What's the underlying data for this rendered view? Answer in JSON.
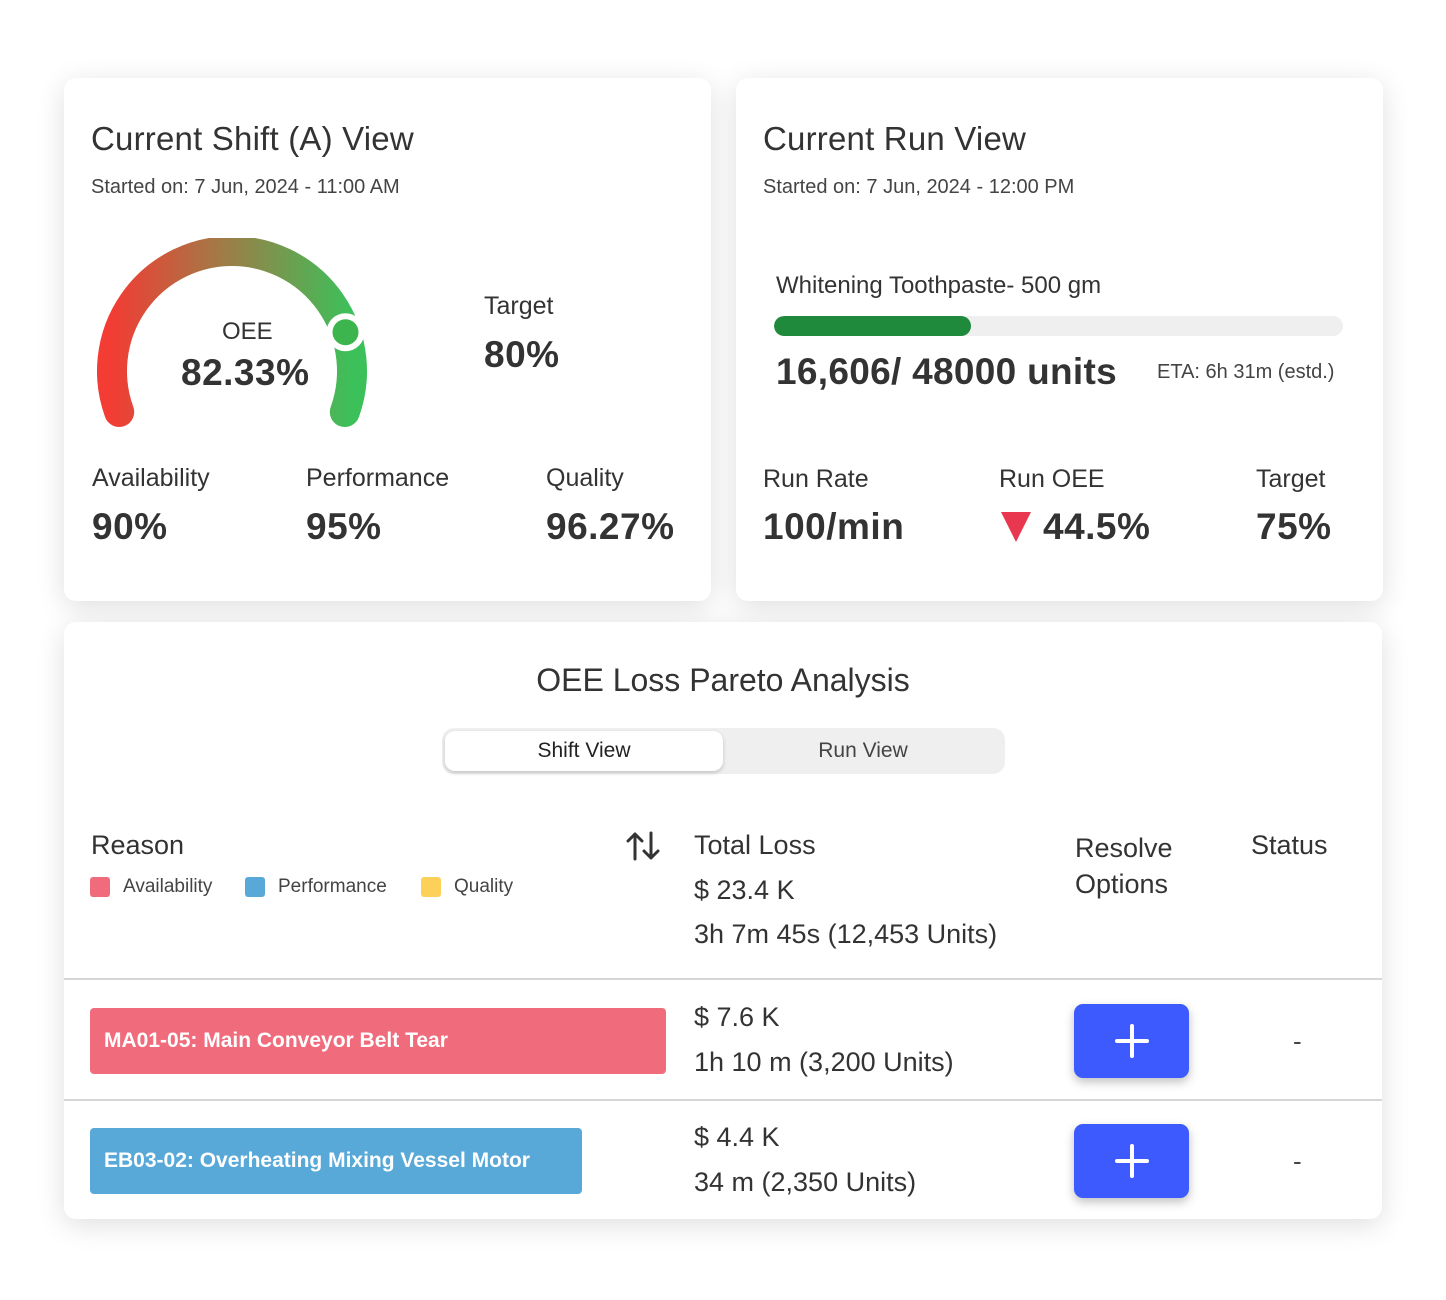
{
  "shift": {
    "title": "Current Shift (A) View",
    "started": "Started on: 7 Jun, 2024 - 11:00 AM",
    "oee_label": "OEE",
    "oee_value": "82.33%",
    "oee_fraction": 0.8233,
    "target_label": "Target",
    "target_value": "80%",
    "metrics": [
      {
        "label": "Availability",
        "value": "90%"
      },
      {
        "label": "Performance",
        "value": "95%"
      },
      {
        "label": "Quality",
        "value": "96.27%"
      }
    ]
  },
  "run": {
    "title": "Current Run View",
    "started": "Started on: 7 Jun, 2024 - 12:00 PM",
    "product": "Whitening Toothpaste- 500 gm",
    "units": "16,606/ 48000 units",
    "progress_fraction": 0.346,
    "eta": "ETA: 6h 31m (estd.)",
    "metrics": [
      {
        "label": "Run Rate",
        "value": "100/min"
      },
      {
        "label": "Run OEE",
        "value": "44.5%"
      },
      {
        "label": "Target",
        "value": "75%"
      }
    ]
  },
  "pareto": {
    "title": "OEE Loss Pareto Analysis",
    "tabs": [
      {
        "label": "Shift View"
      },
      {
        "label": "Run View"
      }
    ],
    "headers": {
      "reason": "Reason",
      "total_loss": "Total Loss",
      "resolve": "Resolve Options",
      "status": "Status"
    },
    "legend": [
      {
        "label": "Availability",
        "color": "#f06c7c"
      },
      {
        "label": "Performance",
        "color": "#58a8d8"
      },
      {
        "label": "Quality",
        "color": "#fdd05a"
      }
    ],
    "total_cost": "$ 23.4 K",
    "total_time": "3h 7m 45s (12,453 Units)",
    "rows": [
      {
        "reason": "MA01-05: Main Conveyor Belt Tear",
        "cost": "$ 7.6 K",
        "time": "1h 10 m (3,200 Units)",
        "status": "-",
        "color": "#f06c7c"
      },
      {
        "reason": "EB03-02: Overheating Mixing Vessel Motor",
        "cost": "$ 4.4 K",
        "time": "34 m (2,350 Units)",
        "status": "-",
        "color": "#58a8d8"
      }
    ]
  },
  "colors": {
    "accent_button": "#3d5afe",
    "progress": "#1f8a3c",
    "down_arrow": "#e9374f"
  }
}
